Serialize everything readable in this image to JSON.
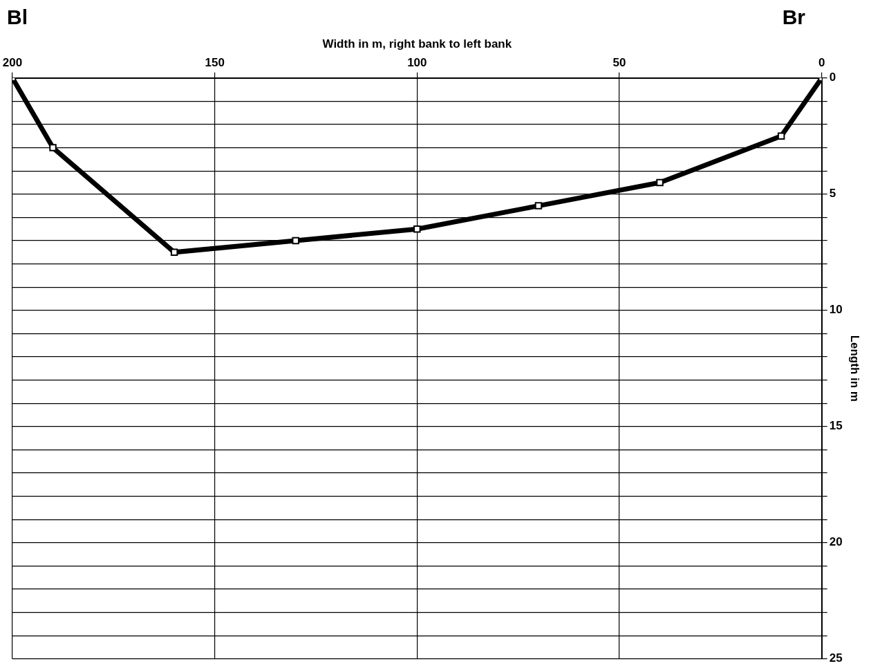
{
  "chart_data": {
    "type": "line",
    "xlabel": "Width in m, right bank to left bank",
    "ylabel": "Length in m",
    "annotations": [
      "Bl",
      "Br"
    ],
    "x": [
      200,
      190,
      160,
      130,
      100,
      70,
      40,
      10,
      0
    ],
    "series": [
      {
        "color": "#000000",
        "values": [
          0,
          3,
          7.5,
          7,
          6.5,
          5.5,
          4.5,
          2.5,
          0
        ]
      }
    ],
    "xlim": [
      200,
      0
    ],
    "xticks": [
      200,
      150,
      100,
      50,
      0
    ],
    "ylim": [
      25,
      0
    ],
    "yticks": [
      0,
      {
        "value": 1,
        "label": null
      },
      {
        "value": 2,
        "label": null
      },
      {
        "value": 3,
        "label": null
      },
      {
        "value": 4,
        "label": null
      },
      5,
      {
        "value": 6,
        "label": null
      },
      {
        "value": 7,
        "label": null
      },
      {
        "value": 8,
        "label": null
      },
      {
        "value": 9,
        "label": null
      },
      10,
      {
        "value": 11,
        "label": null
      },
      {
        "value": 12,
        "label": null
      },
      {
        "value": 13,
        "label": null
      },
      {
        "value": 14,
        "label": null
      },
      15,
      {
        "value": 16,
        "label": null
      },
      {
        "value": 17,
        "label": null
      },
      {
        "value": 18,
        "label": null
      },
      {
        "value": 19,
        "label": null
      },
      20,
      {
        "value": 21,
        "label": null
      },
      {
        "value": 22,
        "label": null
      },
      {
        "value": 23,
        "label": null
      },
      {
        "value": 24,
        "label": null
      },
      25
    ],
    "grid": true,
    "legend": false,
    "marker": "square",
    "line_style": "solid"
  }
}
